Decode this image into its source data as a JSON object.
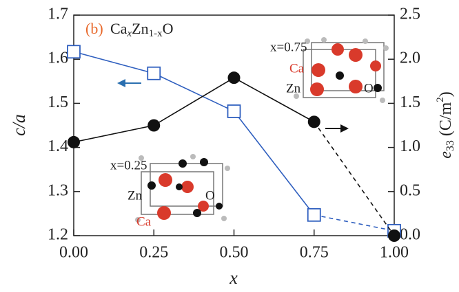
{
  "chart_data": {
    "type": "line",
    "panel_label": "(b)",
    "formula": {
      "a": "Ca",
      "a_sub": "x",
      "b": "Zn",
      "b_sub": "1-x",
      "c": "O"
    },
    "xlabel": "x",
    "ylabel": "c/a",
    "y2label": {
      "sym": "e",
      "sub": "33",
      "unit": " (C/m",
      "sup": "2",
      "close": ")"
    },
    "x": [
      0,
      0.25,
      0.5,
      0.75,
      1.0
    ],
    "dash_from_x": 0.75,
    "series": [
      {
        "color": "#2f5fbf",
        "marker": "square",
        "values": [
          1.617,
          1.568,
          1.482,
          1.247,
          1.211
        ]
      },
      {
        "color": "#111111",
        "marker": "circle",
        "axis": "y2",
        "values": [
          1.06,
          1.25,
          1.79,
          1.29,
          0.0
        ]
      }
    ],
    "xlim": [
      0,
      1
    ],
    "ylim": [
      1.2,
      1.7
    ],
    "y2lim": [
      0,
      2.5
    ],
    "xticks": [
      {
        "value": 0,
        "label": "0.00"
      },
      {
        "value": 0.25,
        "label": "0.25"
      },
      {
        "value": 0.5,
        "label": "0.50"
      },
      {
        "value": 0.75,
        "label": "0.75"
      },
      {
        "value": 1,
        "label": "1.00"
      }
    ],
    "yticks": [
      1.2,
      1.3,
      1.4,
      1.5,
      1.6,
      1.7
    ],
    "y2ticks": [
      {
        "value": 0,
        "label": "0.0"
      },
      {
        "value": 0.5,
        "label": "0.5"
      },
      {
        "value": 1,
        "label": "1.0"
      },
      {
        "value": 1.5,
        "label": "1.5"
      },
      {
        "value": 2,
        "label": "2.0"
      },
      {
        "value": 2.5,
        "label": "2.5"
      }
    ],
    "annotations": [
      "x=0.75",
      "Ca",
      "Zn",
      "O",
      "x=0.25",
      "Zn",
      "O",
      "Ca"
    ]
  }
}
